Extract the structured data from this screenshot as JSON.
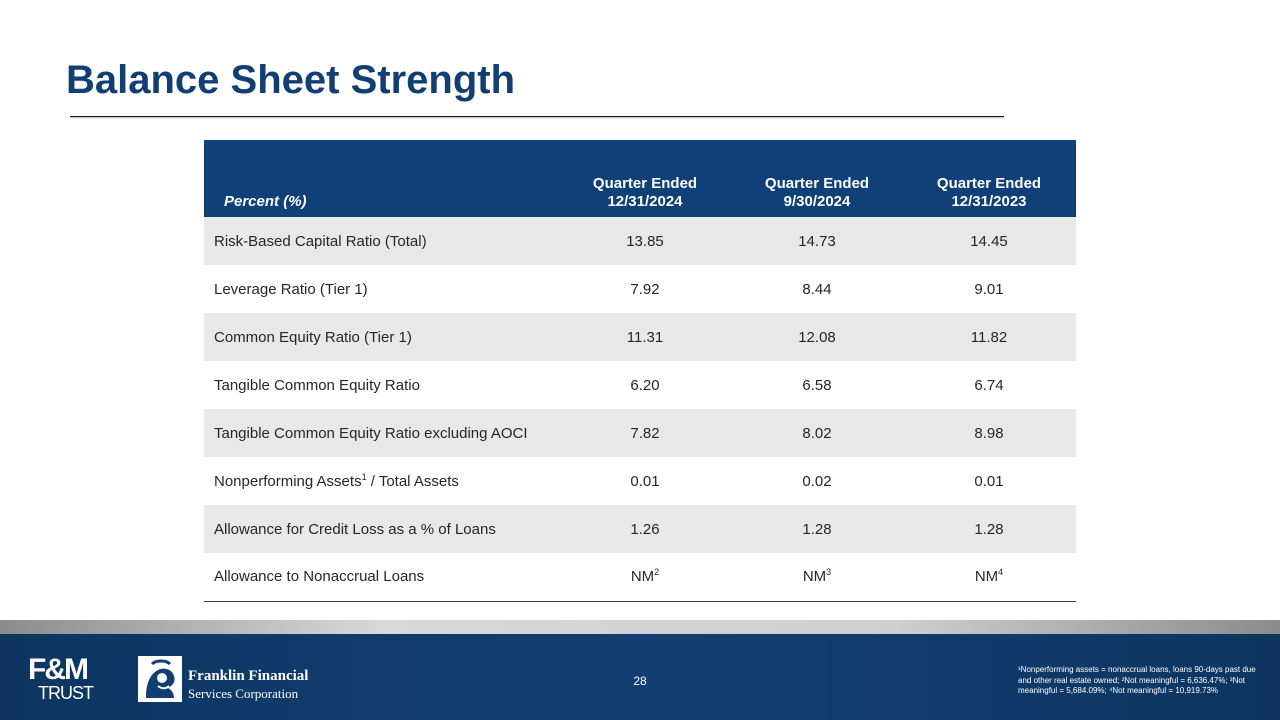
{
  "title": "Balance Sheet Strength",
  "table": {
    "label_header": "Percent (%)",
    "columns": [
      {
        "line1": "Quarter Ended",
        "line2": "12/31/2024"
      },
      {
        "line1": "Quarter Ended",
        "line2": "9/30/2024"
      },
      {
        "line1": "Quarter Ended",
        "line2": "12/31/2023"
      }
    ],
    "rows": [
      {
        "label": "Risk-Based Capital Ratio (Total)",
        "values": [
          "13.85",
          "14.73",
          "14.45"
        ]
      },
      {
        "label": "Leverage Ratio (Tier 1)",
        "values": [
          "7.92",
          "8.44",
          "9.01"
        ]
      },
      {
        "label": "Common Equity Ratio (Tier 1)",
        "values": [
          "11.31",
          "12.08",
          "11.82"
        ]
      },
      {
        "label": "Tangible Common Equity Ratio",
        "values": [
          "6.20",
          "6.58",
          "6.74"
        ]
      },
      {
        "label": "Tangible Common Equity Ratio excluding AOCI",
        "values": [
          "7.82",
          "8.02",
          "8.98"
        ]
      },
      {
        "label": "Nonperforming Assets",
        "label_sup": "1",
        "label_suffix": " / Total Assets",
        "values": [
          "0.01",
          "0.02",
          "0.01"
        ]
      },
      {
        "label": "Allowance for Credit Loss as a % of Loans",
        "values": [
          "1.26",
          "1.28",
          "1.28"
        ]
      },
      {
        "label": "Allowance to Nonaccrual Loans",
        "values": [
          "NM",
          "NM",
          "NM"
        ],
        "value_sups": [
          "2",
          "3",
          "4"
        ]
      }
    ]
  },
  "footer": {
    "page_number": "28",
    "fm_logo": {
      "mark": "F&M",
      "word": "TRUST"
    },
    "ffsc_logo": {
      "line1": "Franklin Financial",
      "line2": "Services Corporation"
    },
    "footnote": "¹Nonperforming assets = nonaccrual loans, loans 90-days past due and other real estate owned; ²Not meaningful = 6,636.47%; ³Not meaningful = 5,684.09%; ⁴Not meaningful = 10,919.73%"
  },
  "colors": {
    "title": "#123f73",
    "header_bg": "#0f4077",
    "stripe": "#e8e8e8",
    "footer_bg": "#123f73"
  }
}
